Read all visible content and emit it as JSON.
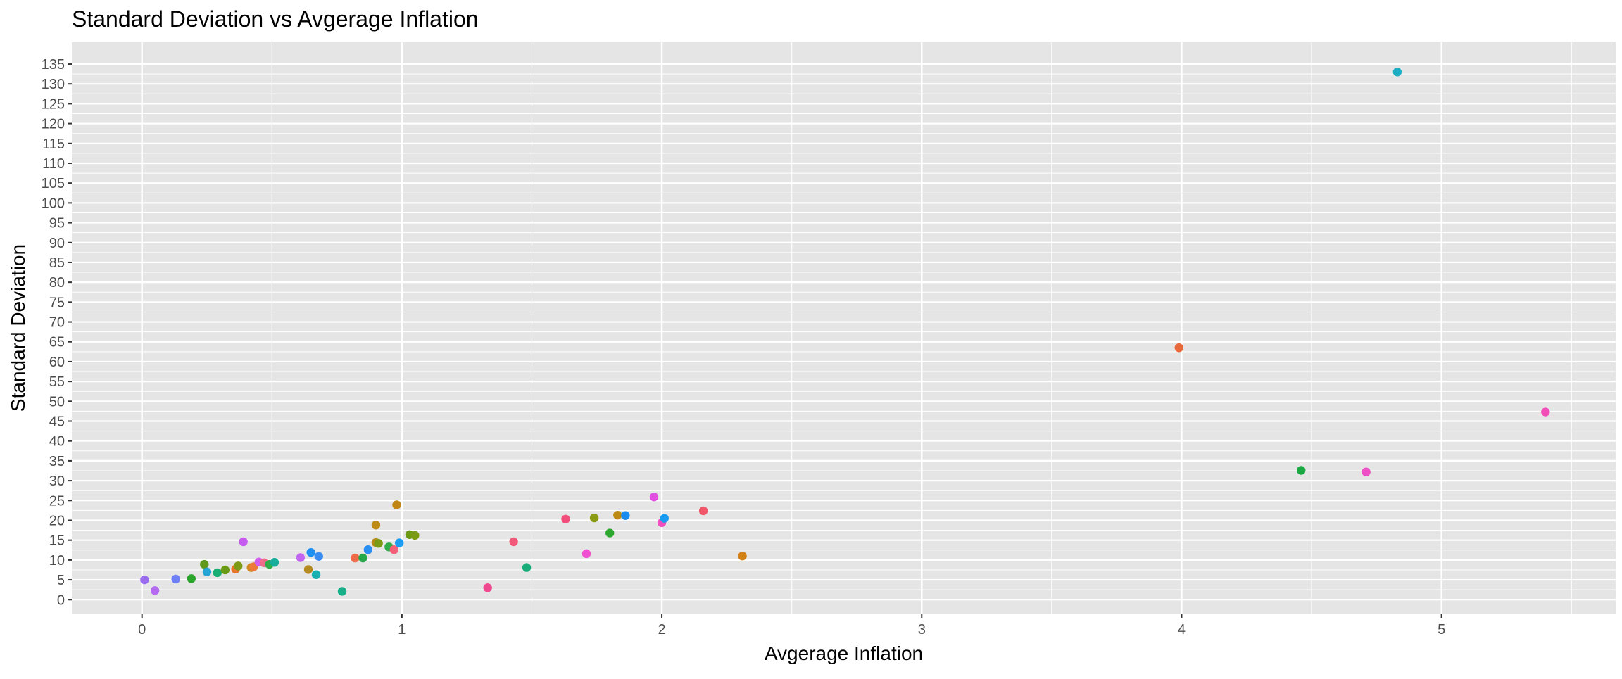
{
  "chart_data": {
    "type": "scatter",
    "title": "Standard Deviation vs Avgerage Inflation",
    "xlabel": "Avgerage Inflation",
    "ylabel": "Standard Deviation",
    "xlim": [
      -0.27,
      5.67
    ],
    "ylim": [
      -3.5,
      140.5
    ],
    "x_ticks": [
      0,
      1,
      2,
      3,
      4,
      5
    ],
    "x_minor_ticks": [
      0.5,
      1.5,
      2.5,
      3.5,
      4.5,
      5.5
    ],
    "y_ticks": [
      0,
      5,
      10,
      15,
      20,
      25,
      30,
      35,
      40,
      45,
      50,
      55,
      60,
      65,
      70,
      75,
      80,
      85,
      90,
      95,
      100,
      105,
      110,
      115,
      120,
      125,
      130,
      135
    ],
    "grid": true,
    "legend": "none",
    "panel_background": "#e5e5e5",
    "grid_color": "#ffffff",
    "points": [
      {
        "x": 0.01,
        "y": 5.0,
        "color": "#9a6cf0"
      },
      {
        "x": 0.05,
        "y": 2.3,
        "color": "#b36af0"
      },
      {
        "x": 0.13,
        "y": 5.2,
        "color": "#6f7ff5"
      },
      {
        "x": 0.19,
        "y": 5.3,
        "color": "#2ca52c"
      },
      {
        "x": 0.24,
        "y": 8.9,
        "color": "#5f9a1f"
      },
      {
        "x": 0.25,
        "y": 7.0,
        "color": "#26a4d6"
      },
      {
        "x": 0.29,
        "y": 6.8,
        "color": "#17ad73"
      },
      {
        "x": 0.32,
        "y": 7.5,
        "color": "#6b9b14"
      },
      {
        "x": 0.36,
        "y": 7.7,
        "color": "#e2762a"
      },
      {
        "x": 0.37,
        "y": 8.5,
        "color": "#7c9a13"
      },
      {
        "x": 0.39,
        "y": 14.6,
        "color": "#c45cf0"
      },
      {
        "x": 0.42,
        "y": 8.1,
        "color": "#cf8a1f"
      },
      {
        "x": 0.43,
        "y": 8.3,
        "color": "#ec7a3a"
      },
      {
        "x": 0.45,
        "y": 9.5,
        "color": "#d05cf0"
      },
      {
        "x": 0.47,
        "y": 9.3,
        "color": "#f06a8a"
      },
      {
        "x": 0.49,
        "y": 8.9,
        "color": "#33ab49"
      },
      {
        "x": 0.51,
        "y": 9.4,
        "color": "#17ad9a"
      },
      {
        "x": 0.61,
        "y": 10.6,
        "color": "#c066f0"
      },
      {
        "x": 0.64,
        "y": 7.6,
        "color": "#b28a1f"
      },
      {
        "x": 0.65,
        "y": 11.9,
        "color": "#1e90f0"
      },
      {
        "x": 0.67,
        "y": 6.3,
        "color": "#19b0b0"
      },
      {
        "x": 0.68,
        "y": 10.9,
        "color": "#3a8cf0"
      },
      {
        "x": 0.77,
        "y": 2.1,
        "color": "#17b089"
      },
      {
        "x": 0.82,
        "y": 10.5,
        "color": "#f06a4a"
      },
      {
        "x": 0.85,
        "y": 10.5,
        "color": "#26a84a"
      },
      {
        "x": 0.87,
        "y": 12.6,
        "color": "#2a8ff0"
      },
      {
        "x": 0.9,
        "y": 18.8,
        "color": "#bd8a15"
      },
      {
        "x": 0.9,
        "y": 14.4,
        "color": "#b58a15"
      },
      {
        "x": 0.91,
        "y": 14.2,
        "color": "#7a9a13"
      },
      {
        "x": 0.95,
        "y": 13.3,
        "color": "#2dac47"
      },
      {
        "x": 0.97,
        "y": 12.6,
        "color": "#f2607a"
      },
      {
        "x": 0.98,
        "y": 23.9,
        "color": "#c08515"
      },
      {
        "x": 0.99,
        "y": 14.3,
        "color": "#1a9cf0"
      },
      {
        "x": 1.03,
        "y": 16.4,
        "color": "#6d9a13"
      },
      {
        "x": 1.05,
        "y": 16.2,
        "color": "#7a9a13"
      },
      {
        "x": 1.33,
        "y": 3.0,
        "color": "#f0488f"
      },
      {
        "x": 1.43,
        "y": 14.6,
        "color": "#f05a7a"
      },
      {
        "x": 1.48,
        "y": 8.1,
        "color": "#17ad79"
      },
      {
        "x": 1.63,
        "y": 20.3,
        "color": "#f04f7c"
      },
      {
        "x": 1.71,
        "y": 11.6,
        "color": "#f04fd0"
      },
      {
        "x": 1.74,
        "y": 20.6,
        "color": "#8a9a13"
      },
      {
        "x": 1.8,
        "y": 16.8,
        "color": "#2ca830"
      },
      {
        "x": 1.83,
        "y": 21.3,
        "color": "#bd8a15"
      },
      {
        "x": 1.86,
        "y": 21.2,
        "color": "#1a8cf0"
      },
      {
        "x": 1.97,
        "y": 25.9,
        "color": "#e04fe0"
      },
      {
        "x": 2.0,
        "y": 19.4,
        "color": "#f04fc0"
      },
      {
        "x": 2.01,
        "y": 20.5,
        "color": "#1a9cf0"
      },
      {
        "x": 2.16,
        "y": 22.4,
        "color": "#f0586a"
      },
      {
        "x": 2.31,
        "y": 11.0,
        "color": "#d38015"
      },
      {
        "x": 3.99,
        "y": 63.5,
        "color": "#e9683a"
      },
      {
        "x": 4.46,
        "y": 32.6,
        "color": "#19a842"
      },
      {
        "x": 4.71,
        "y": 32.2,
        "color": "#f04fc8"
      },
      {
        "x": 4.83,
        "y": 133.0,
        "color": "#19aec3"
      },
      {
        "x": 5.4,
        "y": 47.3,
        "color": "#f04fb8"
      }
    ]
  }
}
